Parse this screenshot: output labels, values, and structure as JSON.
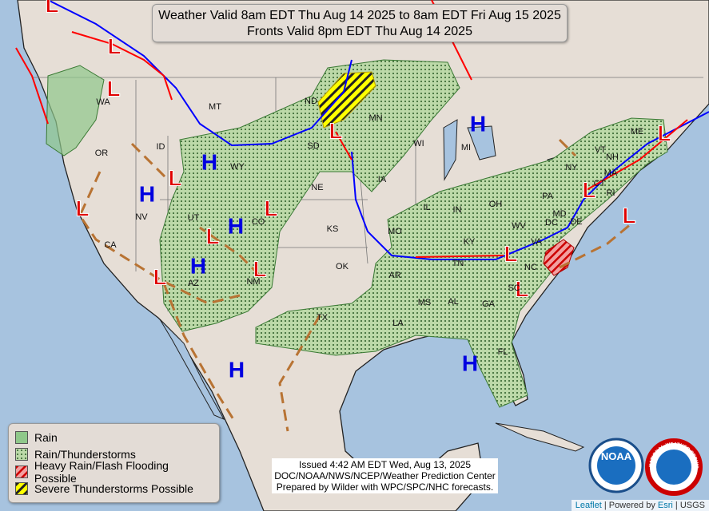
{
  "header": {
    "lines": [
      "Weather Valid 8am EDT Thu Aug 14 2025 to 8am EDT Fri Aug 15 2025",
      "Fronts Valid 8pm EDT Thu Aug 14 2025"
    ]
  },
  "legend": {
    "items": [
      "Rain",
      "Rain/Thunderstorms",
      "Heavy Rain/Flash Flooding Possible",
      "Severe Thunderstorms Possible"
    ]
  },
  "issued": {
    "lines": [
      "Issued  4:42 AM EDT Wed, Aug 13, 2025",
      "DOC/NOAA/NWS/NCEP/Weather Prediction Center",
      "Prepared by Wilder with WPC/SPC/NHC forecasts."
    ]
  },
  "states": [
    "WA",
    "OR",
    "CA",
    "NV",
    "ID",
    "MT",
    "WY",
    "UT",
    "AZ",
    "CO",
    "NM",
    "ND",
    "SD",
    "NE",
    "KS",
    "OK",
    "TX",
    "MN",
    "IA",
    "MO",
    "AR",
    "LA",
    "WI",
    "IL",
    "MI",
    "IN",
    "OH",
    "KY",
    "TN",
    "MS",
    "AL",
    "GA",
    "FL",
    "SC",
    "NC",
    "VA",
    "WV",
    "PA",
    "NY",
    "MD",
    "DC",
    "DE",
    "VT",
    "NH",
    "ME",
    "MA",
    "CT",
    "RI"
  ],
  "highs": [
    "H",
    "H",
    "H",
    "H",
    "H",
    "H",
    "H"
  ],
  "lows": [
    "L",
    "L",
    "L",
    "L",
    "L",
    "L",
    "L",
    "L",
    "L",
    "L",
    "L",
    "L",
    "L",
    "L",
    "L"
  ],
  "logos": [
    "NOAA",
    "NATIONAL WEATHER SERVICE"
  ],
  "attribution": {
    "leaflet": "Leaflet",
    "powered": "| Powered by",
    "esri": "Esri",
    "usgs": "| USGS"
  }
}
